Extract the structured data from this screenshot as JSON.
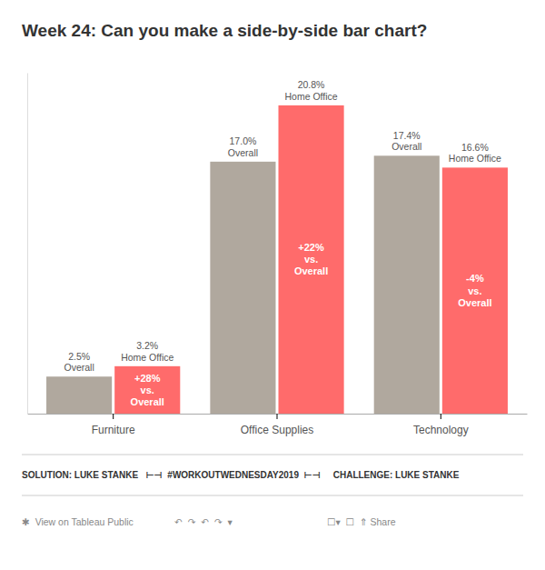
{
  "chart_data": {
    "type": "bar",
    "title": "Week 24: Can you make a side-by-side bar chart?",
    "categories": [
      "Furniture",
      "Office Supplies",
      "Technology"
    ],
    "series": [
      {
        "name": "Overall",
        "color": "#b0a89e",
        "values": [
          2.5,
          17.0,
          17.4
        ],
        "value_labels": [
          "2.5%",
          "17.0%",
          "17.4%"
        ]
      },
      {
        "name": "Home Office",
        "color": "#ff6b6b",
        "values": [
          3.2,
          20.8,
          16.6
        ],
        "value_labels": [
          "3.2%",
          "20.8%",
          "16.6%"
        ],
        "annotations": [
          "+28%\nvs.\nOverall",
          "+22%\nvs.\nOverall",
          "-4%\nvs.\nOverall"
        ]
      }
    ],
    "ylim": [
      0,
      23
    ],
    "grid": false,
    "data_labels": true,
    "tick_labels": "x",
    "footer": [
      "SOLUTION: LUKE STANKE   ⊢⊣  #WORKOUTWEDNESDAY2019  ⊢⊣     CHALLENGE: LUKE STANKE",
      "✱  View on Tableau Public",
      "↶  ↷  ↶  ↷  ▾",
      "☐▾  ☐  ⇑ Share"
    ]
  }
}
